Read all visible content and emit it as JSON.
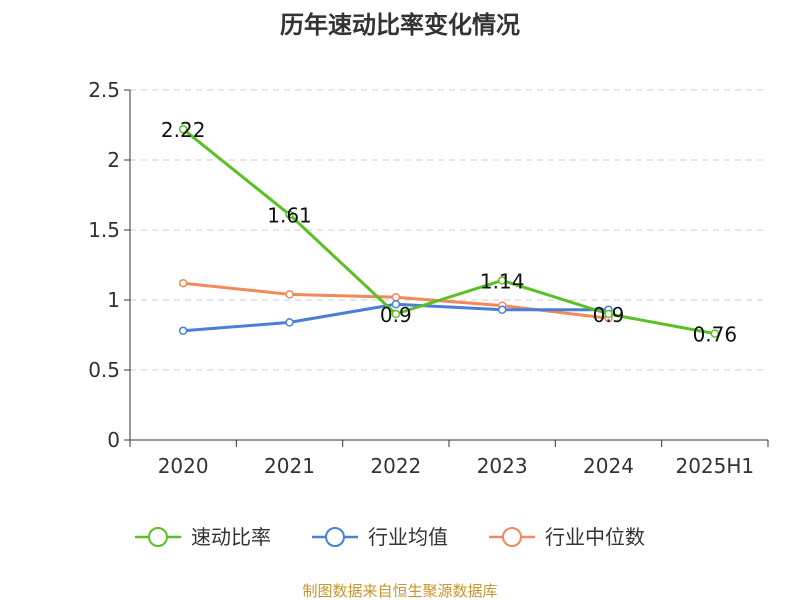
{
  "chart_data": {
    "type": "line",
    "title": "历年速动比率变化情况",
    "categories": [
      "2020",
      "2021",
      "2022",
      "2023",
      "2024",
      "2025H1"
    ],
    "y_ticks": [
      "0",
      "0.5",
      "1",
      "1.5",
      "2",
      "2.5"
    ],
    "ylim": [
      0,
      2.5
    ],
    "grid": true,
    "legend_position": "bottom",
    "series": [
      {
        "name": "速动比率",
        "color": "#5cbf26",
        "values": [
          2.22,
          1.61,
          0.9,
          1.14,
          0.9,
          0.76
        ],
        "labels": [
          "2.22",
          "1.61",
          "0.9",
          "1.14",
          "0.9",
          "0.76"
        ]
      },
      {
        "name": "行业均值",
        "color": "#4a7fd6",
        "values": [
          0.78,
          0.84,
          0.97,
          0.93,
          0.93,
          null
        ]
      },
      {
        "name": "行业中位数",
        "color": "#f2895a",
        "values": [
          1.12,
          1.04,
          1.02,
          0.96,
          0.87,
          null
        ]
      }
    ]
  },
  "source_text": "制图数据来自恒生聚源数据库",
  "source_color": "#c8962e"
}
